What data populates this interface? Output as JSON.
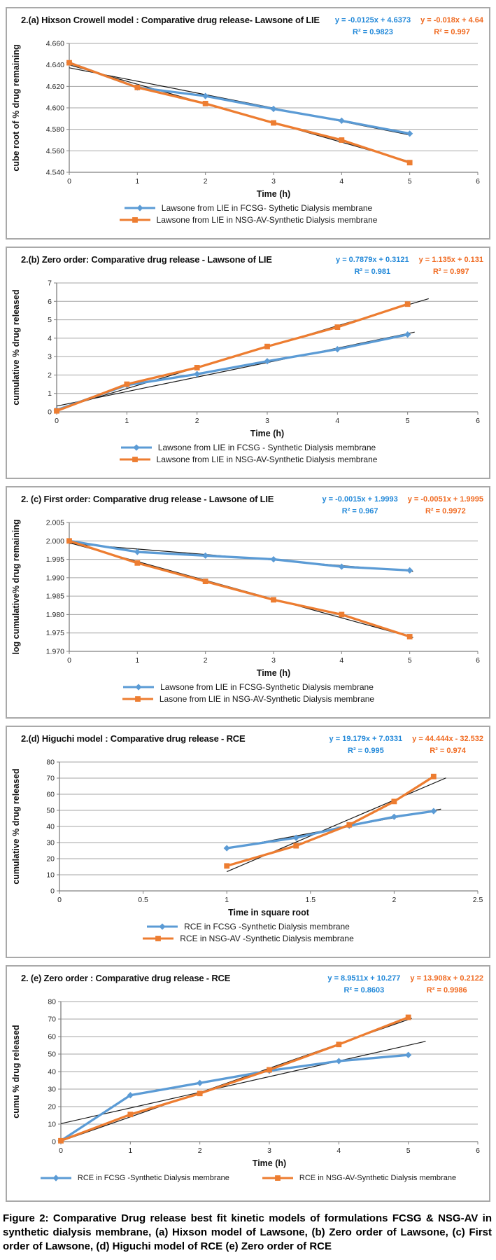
{
  "figure_caption": "Figure 2: Comparative Drug release best fit kinetic models of formulations FCSG & NSG-AV in synthetic dialysis membrane, (a) Hixson model of Lawsone, (b) Zero order of Lawsone, (c) First order of Lawsone, (d) Higuchi model of RCE (e) Zero order of RCE",
  "colors": {
    "series_blue": "#5B9BD5",
    "series_orange": "#ED7D31",
    "equation_blue": "#2389D9",
    "equation_orange": "#F06A21",
    "grid": "#A6A6A6",
    "axis": "#808080",
    "trendline": "#1a1a1a"
  },
  "chart_data": [
    {
      "type": "line",
      "title": "2.(a) Hixson Crowell model : Comparative drug release- Lawsone of LIE",
      "xlabel": "Time (h)",
      "ylabel": "cube root of % drug remaining",
      "xlim": [
        0,
        6
      ],
      "ylim": [
        4.54,
        4.66
      ],
      "grid": "horizontal",
      "legend_position": "bottom-stacked",
      "xticks": [
        {
          "v": 0,
          "label": "0"
        },
        {
          "v": 1,
          "label": "1"
        },
        {
          "v": 2,
          "label": "2"
        },
        {
          "v": 3,
          "label": "3"
        },
        {
          "v": 4,
          "label": "4"
        },
        {
          "v": 5,
          "label": "5"
        },
        {
          "v": 6,
          "label": "6"
        }
      ],
      "yticks": [
        {
          "v": 4.66,
          "label": "4.660"
        },
        {
          "v": 4.64,
          "label": "4.640"
        },
        {
          "v": 4.62,
          "label": "4.620"
        },
        {
          "v": 4.6,
          "label": "4.600"
        },
        {
          "v": 4.58,
          "label": "4.580"
        },
        {
          "v": 4.56,
          "label": "4.560"
        },
        {
          "v": 4.54,
          "label": "4.540"
        }
      ],
      "series": [
        {
          "name": "Lawsone from LIE in FCSG- Sythetic Dialysis membrane",
          "color": "#5B9BD5",
          "marker": "diamond",
          "x": [
            0,
            1,
            2,
            3,
            4,
            5
          ],
          "y": [
            4.642,
            4.619,
            4.611,
            4.599,
            4.588,
            4.576
          ],
          "equation": "y = -0.0125x + 4.6373",
          "r2": "R² = 0.9823",
          "trend": {
            "slope": -0.0125,
            "intercept": 4.6373,
            "x_range": [
              0,
              5
            ]
          }
        },
        {
          "name": "Lawsone from LIE in NSG-AV-Synthetic Dialysis membrane",
          "color": "#ED7D31",
          "marker": "square",
          "x": [
            0,
            1,
            2,
            3,
            4,
            5
          ],
          "y": [
            4.642,
            4.619,
            4.604,
            4.586,
            4.57,
            4.549
          ],
          "equation": "y = -0.018x + 4.64",
          "r2": "R² = 0.997",
          "trend": {
            "slope": -0.018,
            "intercept": 4.64,
            "x_range": [
              0,
              5
            ]
          }
        }
      ]
    },
    {
      "type": "line",
      "title": "2.(b) Zero order: Comparative drug release - Lawsone of LIE",
      "xlabel": "Time (h)",
      "ylabel": "cumulative % drug released",
      "xlim": [
        0,
        6
      ],
      "ylim": [
        0,
        7
      ],
      "grid": "horizontal",
      "legend_position": "bottom-stacked",
      "xticks": [
        {
          "v": 0,
          "label": "0"
        },
        {
          "v": 1,
          "label": "1"
        },
        {
          "v": 2,
          "label": "2"
        },
        {
          "v": 3,
          "label": "3"
        },
        {
          "v": 4,
          "label": "4"
        },
        {
          "v": 5,
          "label": "5"
        },
        {
          "v": 6,
          "label": "6"
        }
      ],
      "yticks": [
        {
          "v": 7,
          "label": "7"
        },
        {
          "v": 6,
          "label": "6"
        },
        {
          "v": 5,
          "label": "5"
        },
        {
          "v": 4,
          "label": "4"
        },
        {
          "v": 3,
          "label": "3"
        },
        {
          "v": 2,
          "label": "2"
        },
        {
          "v": 1,
          "label": "1"
        },
        {
          "v": 0,
          "label": "0"
        }
      ],
      "series": [
        {
          "name": "Lawsone from LIE in FCSG - Synthetic Dialysis membrane",
          "color": "#5B9BD5",
          "marker": "diamond",
          "x": [
            0,
            1,
            2,
            3,
            4,
            5
          ],
          "y": [
            0.1,
            1.45,
            2.05,
            2.75,
            3.4,
            4.2
          ],
          "equation": "y = 0.7879x + 0.3121",
          "r2": "R² = 0.981",
          "trend": {
            "slope": 0.7879,
            "intercept": 0.3121,
            "x_range": [
              0,
              5.1
            ]
          }
        },
        {
          "name": "Lawsone from LIE in NSG-AV-Synthetic Dialysis membrane",
          "color": "#ED7D31",
          "marker": "square",
          "x": [
            0,
            1,
            2,
            3,
            4,
            5
          ],
          "y": [
            0.05,
            1.5,
            2.4,
            3.55,
            4.6,
            5.85
          ],
          "equation": "y = 1.135x + 0.131",
          "r2": "R² = 0.997",
          "trend": {
            "slope": 1.135,
            "intercept": 0.131,
            "x_range": [
              0,
              5.3
            ]
          }
        }
      ]
    },
    {
      "type": "line",
      "title": "2. (c) First order: Comparative drug release - Lawsone of LIE",
      "xlabel": "Time (h)",
      "ylabel": "log cumulative% drug remaining",
      "xlim": [
        0,
        6
      ],
      "ylim": [
        1.97,
        2.005
      ],
      "grid": "horizontal",
      "legend_position": "bottom-stacked",
      "xticks": [
        {
          "v": 0,
          "label": "0"
        },
        {
          "v": 1,
          "label": "1"
        },
        {
          "v": 2,
          "label": "2"
        },
        {
          "v": 3,
          "label": "3"
        },
        {
          "v": 4,
          "label": "4"
        },
        {
          "v": 5,
          "label": "5"
        },
        {
          "v": 6,
          "label": "6"
        }
      ],
      "yticks": [
        {
          "v": 2.005,
          "label": "2.005"
        },
        {
          "v": 2.0,
          "label": "2.000"
        },
        {
          "v": 1.995,
          "label": "1.995"
        },
        {
          "v": 1.99,
          "label": "1.990"
        },
        {
          "v": 1.985,
          "label": "1.985"
        },
        {
          "v": 1.98,
          "label": "1.980"
        },
        {
          "v": 1.975,
          "label": "1.975"
        },
        {
          "v": 1.97,
          "label": "1.970"
        }
      ],
      "series": [
        {
          "name": "Lawsone from LIE in FCSG-Synthetic Dialysis membrane",
          "color": "#5B9BD5",
          "marker": "diamond",
          "x": [
            0,
            1,
            2,
            3,
            4,
            5
          ],
          "y": [
            2.0,
            1.997,
            1.996,
            1.995,
            1.993,
            1.992
          ],
          "equation": "y = -0.0015x + 1.9993",
          "r2": "R² = 0.967",
          "trend": {
            "slope": -0.0015,
            "intercept": 1.9993,
            "x_range": [
              0,
              5.05
            ]
          }
        },
        {
          "name": "Lasone from LIE in NSG-AV-Synthetic Dialysis membrane",
          "color": "#ED7D31",
          "marker": "square",
          "x": [
            0,
            1,
            2,
            3,
            4,
            5
          ],
          "y": [
            2.0,
            1.994,
            1.989,
            1.984,
            1.98,
            1.974
          ],
          "equation": "y = -0.0051x + 1.9995",
          "r2": "R² = 0.9972",
          "trend": {
            "slope": -0.0051,
            "intercept": 1.9995,
            "x_range": [
              0,
              5.05
            ]
          }
        }
      ]
    },
    {
      "type": "line",
      "title": "2.(d) Higuchi model : Comparative drug release - RCE",
      "xlabel": "Time in square root",
      "ylabel": "cumulative % drug released",
      "xlim": [
        0,
        2.5
      ],
      "ylim": [
        0,
        80
      ],
      "grid": "horizontal",
      "legend_position": "bottom-stacked",
      "xticks": [
        {
          "v": 0,
          "label": "0"
        },
        {
          "v": 0.5,
          "label": "0.5"
        },
        {
          "v": 1,
          "label": "1"
        },
        {
          "v": 1.5,
          "label": "1.5"
        },
        {
          "v": 2,
          "label": "2"
        },
        {
          "v": 2.5,
          "label": "2.5"
        }
      ],
      "yticks": [
        {
          "v": 80,
          "label": "80"
        },
        {
          "v": 70,
          "label": "70"
        },
        {
          "v": 60,
          "label": "60"
        },
        {
          "v": 50,
          "label": "50"
        },
        {
          "v": 40,
          "label": "40"
        },
        {
          "v": 30,
          "label": "30"
        },
        {
          "v": 20,
          "label": "20"
        },
        {
          "v": 10,
          "label": "10"
        },
        {
          "v": 0,
          "label": "0"
        }
      ],
      "series": [
        {
          "name": "RCE in FCSG -Synthetic Dialysis membrane",
          "color": "#5B9BD5",
          "marker": "diamond",
          "x": [
            1,
            1.414,
            1.732,
            2,
            2.236
          ],
          "y": [
            26.5,
            33,
            40.5,
            46,
            49.5
          ],
          "equation": "y = 19.179x + 7.0331",
          "r2": "R² = 0.995",
          "trend": {
            "slope": 19.179,
            "intercept": 7.0331,
            "x_range": [
              1,
              2.28
            ]
          }
        },
        {
          "name": "RCE in NSG-AV -Synthetic Dialysis membrane",
          "color": "#ED7D31",
          "marker": "square",
          "x": [
            1,
            1.414,
            1.732,
            2,
            2.236
          ],
          "y": [
            15.5,
            28,
            41,
            55.5,
            71
          ],
          "equation": "y = 44.444x - 32.532",
          "r2": "R² = 0.974",
          "trend": {
            "slope": 44.444,
            "intercept": -32.532,
            "x_range": [
              1,
              2.31
            ]
          }
        }
      ]
    },
    {
      "type": "line",
      "title": "2. (e) Zero order : Comparative drug release - RCE",
      "xlabel": "Time  (h)",
      "ylabel": "cumu % drug released",
      "xlim": [
        0,
        6
      ],
      "ylim": [
        0,
        80
      ],
      "grid": "horizontal",
      "legend_position": "bottom-row",
      "xticks": [
        {
          "v": 0,
          "label": "0"
        },
        {
          "v": 1,
          "label": "1"
        },
        {
          "v": 2,
          "label": "2"
        },
        {
          "v": 3,
          "label": "3"
        },
        {
          "v": 4,
          "label": "4"
        },
        {
          "v": 5,
          "label": "5"
        },
        {
          "v": 6,
          "label": "6"
        }
      ],
      "yticks": [
        {
          "v": 80,
          "label": "80"
        },
        {
          "v": 70,
          "label": "70"
        },
        {
          "v": 60,
          "label": "60"
        },
        {
          "v": 50,
          "label": "50"
        },
        {
          "v": 40,
          "label": "40"
        },
        {
          "v": 30,
          "label": "30"
        },
        {
          "v": 20,
          "label": "20"
        },
        {
          "v": 10,
          "label": "10"
        },
        {
          "v": 0,
          "label": "0"
        }
      ],
      "series": [
        {
          "name": "RCE in FCSG -Synthetic Dialysis membrane",
          "color": "#5B9BD5",
          "marker": "diamond",
          "x": [
            0,
            1,
            2,
            3,
            4,
            5
          ],
          "y": [
            0.5,
            26.5,
            33.5,
            40.5,
            46,
            49.5
          ],
          "equation": "y = 8.9511x + 10.277",
          "r2": "R² = 0.8603",
          "trend": {
            "slope": 8.9511,
            "intercept": 10.277,
            "x_range": [
              0,
              5.25
            ]
          }
        },
        {
          "name": "RCE in  NSG-AV-Synthetic Dialysis membrane",
          "color": "#ED7D31",
          "marker": "square",
          "x": [
            0,
            1,
            2,
            3,
            4,
            5
          ],
          "y": [
            0.5,
            15.5,
            27.5,
            41,
            55.5,
            71
          ],
          "equation": "y = 13.908x + 0.2122",
          "r2": "R² = 0.9986",
          "trend": {
            "slope": 13.908,
            "intercept": 0.2122,
            "x_range": [
              0,
              5.05
            ]
          }
        }
      ]
    }
  ]
}
